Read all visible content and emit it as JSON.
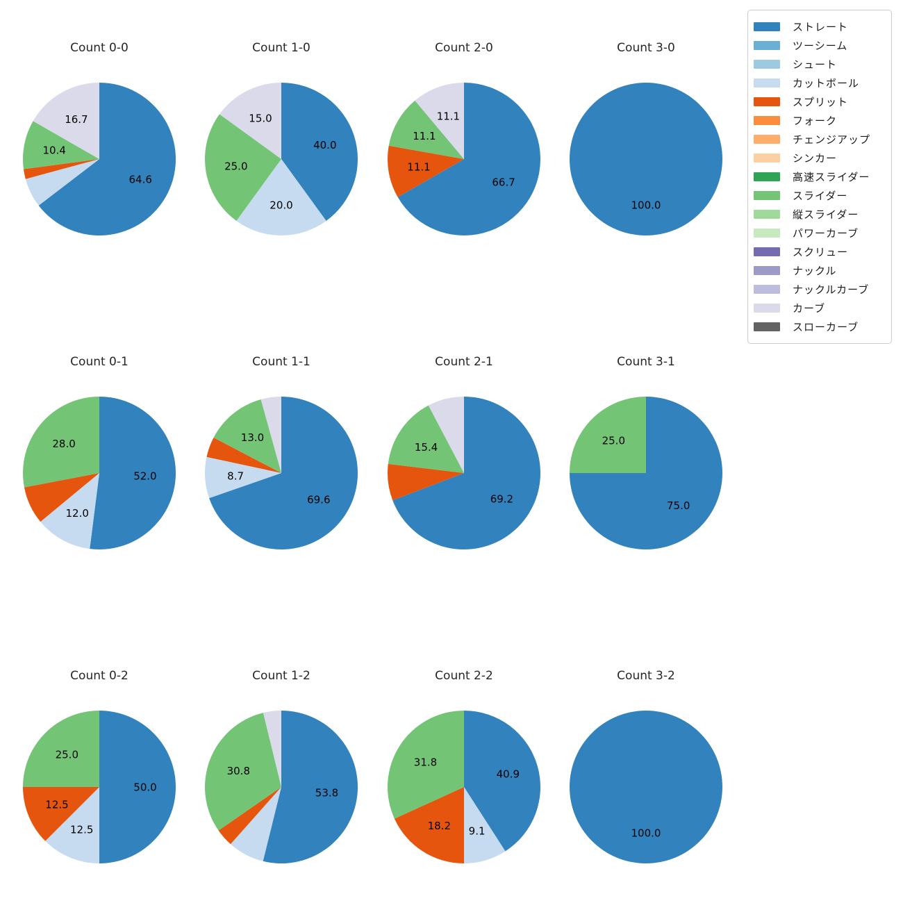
{
  "figure": {
    "background": "#ffffff",
    "text_color": "#262626"
  },
  "legend": {
    "position": "top-right",
    "items": [
      {
        "label": "ストレート",
        "color": "#3182bd"
      },
      {
        "label": "ツーシーム",
        "color": "#6baed6"
      },
      {
        "label": "シュート",
        "color": "#9ecae1"
      },
      {
        "label": "カットボール",
        "color": "#c6dbef"
      },
      {
        "label": "スプリット",
        "color": "#e6550d"
      },
      {
        "label": "フォーク",
        "color": "#fd8d3c"
      },
      {
        "label": "チェンジアップ",
        "color": "#fdae6b"
      },
      {
        "label": "シンカー",
        "color": "#fdd0a2"
      },
      {
        "label": "高速スライダー",
        "color": "#31a354"
      },
      {
        "label": "スライダー",
        "color": "#74c476"
      },
      {
        "label": "縦スライダー",
        "color": "#a1d99b"
      },
      {
        "label": "パワーカーブ",
        "color": "#c7e9c0"
      },
      {
        "label": "スクリュー",
        "color": "#756bb1"
      },
      {
        "label": "ナックル",
        "color": "#9e9ac8"
      },
      {
        "label": "ナックルカーブ",
        "color": "#bcbddc"
      },
      {
        "label": "カーブ",
        "color": "#dadaeb"
      },
      {
        "label": "スローカーブ",
        "color": "#636363"
      }
    ]
  },
  "chart_data": [
    {
      "type": "pie",
      "title": "Count 0-0",
      "start_angle_deg": 90,
      "direction": "clockwise",
      "slices": [
        {
          "name": "ストレート",
          "value": 64.6,
          "label": "64.6"
        },
        {
          "name": "カットボール",
          "value": 6.2,
          "label": ""
        },
        {
          "name": "スプリット",
          "value": 2.1,
          "label": ""
        },
        {
          "name": "スライダー",
          "value": 10.4,
          "label": "10.4"
        },
        {
          "name": "カーブ",
          "value": 16.7,
          "label": "16.7"
        }
      ]
    },
    {
      "type": "pie",
      "title": "Count 1-0",
      "start_angle_deg": 90,
      "direction": "clockwise",
      "slices": [
        {
          "name": "ストレート",
          "value": 40.0,
          "label": "40.0"
        },
        {
          "name": "カットボール",
          "value": 20.0,
          "label": "20.0"
        },
        {
          "name": "スライダー",
          "value": 25.0,
          "label": "25.0"
        },
        {
          "name": "カーブ",
          "value": 15.0,
          "label": "15.0"
        }
      ]
    },
    {
      "type": "pie",
      "title": "Count 2-0",
      "start_angle_deg": 90,
      "direction": "clockwise",
      "slices": [
        {
          "name": "ストレート",
          "value": 66.7,
          "label": "66.7"
        },
        {
          "name": "スプリット",
          "value": 11.1,
          "label": "11.1"
        },
        {
          "name": "スライダー",
          "value": 11.1,
          "label": "11.1"
        },
        {
          "name": "カーブ",
          "value": 11.1,
          "label": "11.1"
        }
      ]
    },
    {
      "type": "pie",
      "title": "Count 3-0",
      "start_angle_deg": 90,
      "direction": "clockwise",
      "slices": [
        {
          "name": "ストレート",
          "value": 100.0,
          "label": "100.0"
        }
      ]
    },
    {
      "type": "pie",
      "title": "Count 0-1",
      "start_angle_deg": 90,
      "direction": "clockwise",
      "slices": [
        {
          "name": "ストレート",
          "value": 52.0,
          "label": "52.0"
        },
        {
          "name": "カットボール",
          "value": 12.0,
          "label": "12.0"
        },
        {
          "name": "スプリット",
          "value": 8.0,
          "label": ""
        },
        {
          "name": "スライダー",
          "value": 28.0,
          "label": "28.0"
        }
      ]
    },
    {
      "type": "pie",
      "title": "Count 1-1",
      "start_angle_deg": 90,
      "direction": "clockwise",
      "slices": [
        {
          "name": "ストレート",
          "value": 69.6,
          "label": "69.6"
        },
        {
          "name": "カットボール",
          "value": 8.7,
          "label": "8.7"
        },
        {
          "name": "スプリット",
          "value": 4.3,
          "label": ""
        },
        {
          "name": "スライダー",
          "value": 13.0,
          "label": "13.0"
        },
        {
          "name": "カーブ",
          "value": 4.3,
          "label": ""
        }
      ]
    },
    {
      "type": "pie",
      "title": "Count 2-1",
      "start_angle_deg": 90,
      "direction": "clockwise",
      "slices": [
        {
          "name": "ストレート",
          "value": 69.2,
          "label": "69.2"
        },
        {
          "name": "スプリット",
          "value": 7.7,
          "label": ""
        },
        {
          "name": "スライダー",
          "value": 15.4,
          "label": "15.4"
        },
        {
          "name": "カーブ",
          "value": 7.7,
          "label": ""
        }
      ]
    },
    {
      "type": "pie",
      "title": "Count 3-1",
      "start_angle_deg": 90,
      "direction": "clockwise",
      "slices": [
        {
          "name": "ストレート",
          "value": 75.0,
          "label": "75.0"
        },
        {
          "name": "スライダー",
          "value": 25.0,
          "label": "25.0"
        }
      ]
    },
    {
      "type": "pie",
      "title": "Count 0-2",
      "start_angle_deg": 90,
      "direction": "clockwise",
      "slices": [
        {
          "name": "ストレート",
          "value": 50.0,
          "label": "50.0"
        },
        {
          "name": "カットボール",
          "value": 12.5,
          "label": "12.5"
        },
        {
          "name": "スプリット",
          "value": 12.5,
          "label": "12.5"
        },
        {
          "name": "スライダー",
          "value": 25.0,
          "label": "25.0"
        }
      ]
    },
    {
      "type": "pie",
      "title": "Count 1-2",
      "start_angle_deg": 90,
      "direction": "clockwise",
      "slices": [
        {
          "name": "ストレート",
          "value": 53.8,
          "label": "53.8"
        },
        {
          "name": "カットボール",
          "value": 7.7,
          "label": ""
        },
        {
          "name": "スプリット",
          "value": 3.8,
          "label": ""
        },
        {
          "name": "スライダー",
          "value": 30.8,
          "label": "30.8"
        },
        {
          "name": "カーブ",
          "value": 3.8,
          "label": ""
        }
      ]
    },
    {
      "type": "pie",
      "title": "Count 2-2",
      "start_angle_deg": 90,
      "direction": "clockwise",
      "slices": [
        {
          "name": "ストレート",
          "value": 40.9,
          "label": "40.9"
        },
        {
          "name": "カットボール",
          "value": 9.1,
          "label": "9.1"
        },
        {
          "name": "スプリット",
          "value": 18.2,
          "label": "18.2"
        },
        {
          "name": "スライダー",
          "value": 31.8,
          "label": "31.8"
        }
      ]
    },
    {
      "type": "pie",
      "title": "Count 3-2",
      "start_angle_deg": 90,
      "direction": "clockwise",
      "slices": [
        {
          "name": "ストレート",
          "value": 100.0,
          "label": "100.0"
        }
      ]
    }
  ]
}
